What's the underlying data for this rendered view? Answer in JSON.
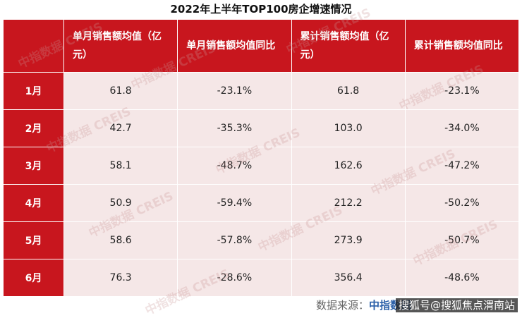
{
  "title": "2022年上半年TOP100房企增速情况",
  "table": {
    "header": [
      "",
      "单月销售额均值（亿元）",
      "单月销售额均值同比",
      "累计销售额均值（亿元）",
      "累计销售额均值同比"
    ],
    "rows": [
      [
        "1月",
        "61.8",
        "-23.1%",
        "61.8",
        "-23.1%"
      ],
      [
        "2月",
        "42.7",
        "-35.3%",
        "103.0",
        "-34.0%"
      ],
      [
        "3月",
        "58.1",
        "-48.7%",
        "162.6",
        "-47.2%"
      ],
      [
        "4月",
        "50.9",
        "-59.4%",
        "212.2",
        "-50.2%"
      ],
      [
        "5月",
        "58.6",
        "-57.8%",
        "273.9",
        "-50.7%"
      ],
      [
        "6月",
        "76.3",
        "-28.6%",
        "356.4",
        "-48.6%"
      ]
    ]
  },
  "watermark": "中指数据 CREIS",
  "source": {
    "label": "数据来源：",
    "name": "中指数据",
    "credit": "搜狐号@搜狐焦点渭南站"
  }
}
